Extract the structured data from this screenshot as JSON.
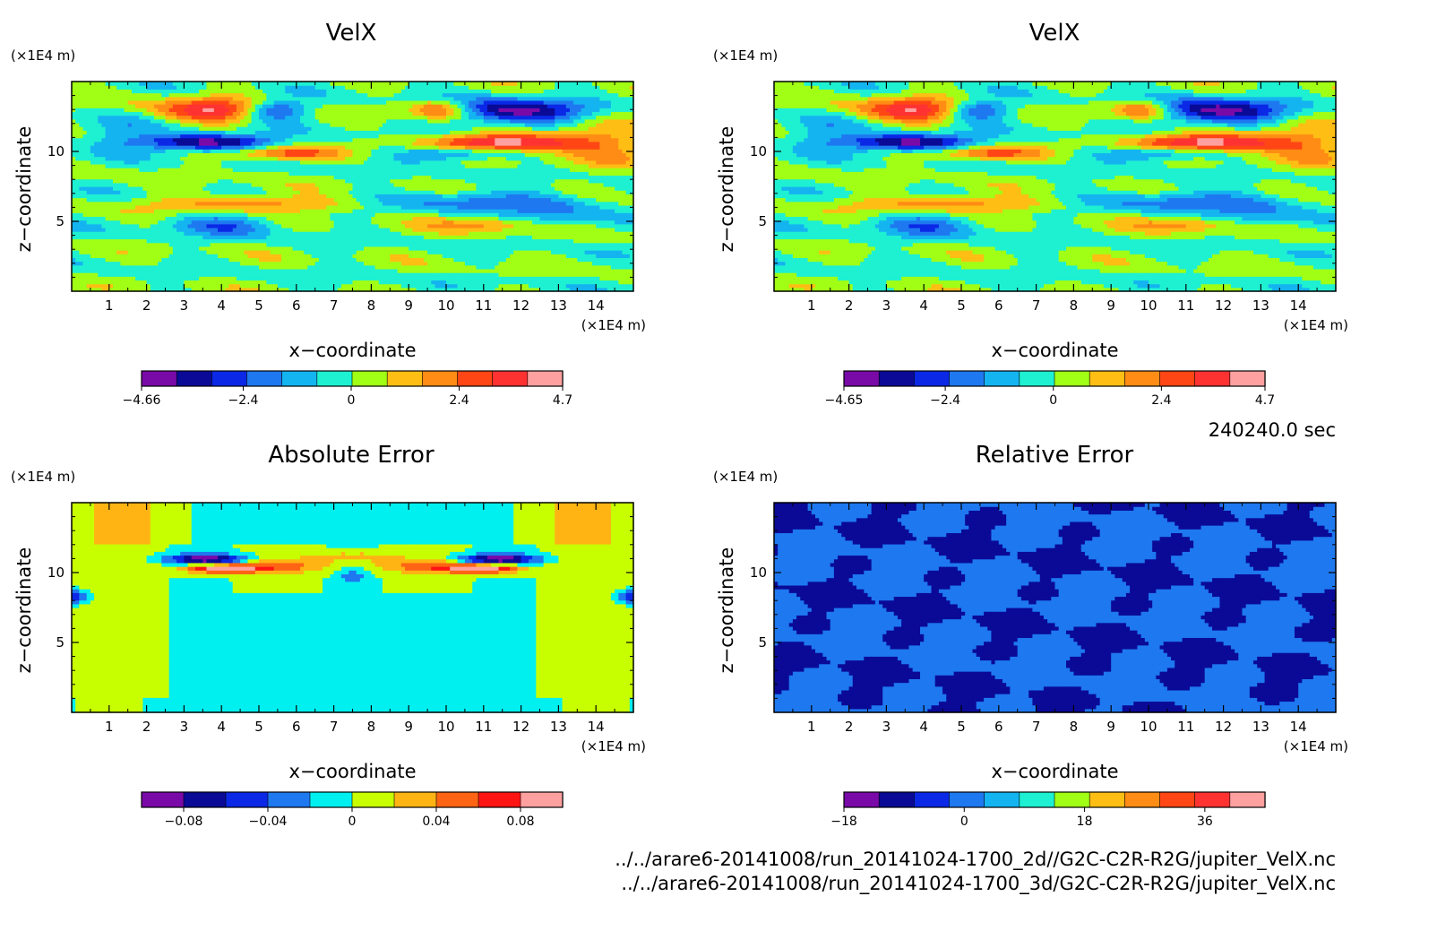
{
  "time_label": "240240.0 sec",
  "file_paths": [
    "../../arare6-20141008/run_20141024-1700_2d//G2C-C2R-R2G/jupiter_VelX.nc",
    "../../arare6-20141008/run_20141024-1700_3d/G2C-C2R-R2G/jupiter_VelX.nc"
  ],
  "colors": {
    "palette": [
      "#7a0aa8",
      "#0a0a96",
      "#0a28e6",
      "#1e78f0",
      "#14b4f0",
      "#1ef0d2",
      "#a0ff14",
      "#ffbe14",
      "#ff8c14",
      "#ff4614",
      "#ff3232",
      "#ffa0a0"
    ],
    "abs_palette": [
      "#7a0aa8",
      "#0a0a96",
      "#0a28e6",
      "#1e78f0",
      "#00f0f0",
      "#c8ff00",
      "#ffb414",
      "#ff6414",
      "#ff1414",
      "#ffa0a0"
    ],
    "rel_palette": [
      "#7a0aa8",
      "#0a0a96",
      "#0a28e6",
      "#1e78f0",
      "#14b4f0",
      "#1ef0d2",
      "#a0ff14",
      "#ffbe14",
      "#ff8c14",
      "#ff4614",
      "#ff3232",
      "#ffa0a0"
    ]
  },
  "chart_data": [
    {
      "type": "heatmap",
      "title": "VelX",
      "xlabel": "x−coordinate",
      "ylabel": "z−coordinate",
      "x_unit": "(×1E4 m)",
      "y_unit": "(×1E4 m)",
      "xlim": [
        0,
        15
      ],
      "ylim": [
        0,
        15
      ],
      "x_ticks": [
        1,
        2,
        3,
        4,
        5,
        6,
        7,
        8,
        9,
        10,
        11,
        12,
        13,
        14
      ],
      "y_ticks": [
        5,
        10
      ],
      "colorbar": {
        "min": -4.66,
        "max": 4.7,
        "tick_values": [
          -4.66,
          -2.4,
          0,
          2.4,
          4.7
        ],
        "tick_labels": [
          "−4.66",
          "−2.4",
          "0",
          "2.4",
          "4.7"
        ],
        "levels": 12
      },
      "field": "velx"
    },
    {
      "type": "heatmap",
      "title": "VelX",
      "xlabel": "x−coordinate",
      "ylabel": "z−coordinate",
      "x_unit": "(×1E4 m)",
      "y_unit": "(×1E4 m)",
      "xlim": [
        0,
        15
      ],
      "ylim": [
        0,
        15
      ],
      "x_ticks": [
        1,
        2,
        3,
        4,
        5,
        6,
        7,
        8,
        9,
        10,
        11,
        12,
        13,
        14
      ],
      "y_ticks": [
        5,
        10
      ],
      "colorbar": {
        "min": -4.65,
        "max": 4.7,
        "tick_values": [
          -4.65,
          -2.4,
          0,
          2.4,
          4.7
        ],
        "tick_labels": [
          "−4.65",
          "−2.4",
          "0",
          "2.4",
          "4.7"
        ],
        "levels": 12
      },
      "field": "velx"
    },
    {
      "type": "heatmap",
      "title": "Absolute Error",
      "xlabel": "x−coordinate",
      "ylabel": "z−coordinate",
      "x_unit": "(×1E4 m)",
      "y_unit": "(×1E4 m)",
      "xlim": [
        0,
        15
      ],
      "ylim": [
        0,
        15
      ],
      "x_ticks": [
        1,
        2,
        3,
        4,
        5,
        6,
        7,
        8,
        9,
        10,
        11,
        12,
        13,
        14
      ],
      "y_ticks": [
        5,
        10
      ],
      "colorbar": {
        "min": -0.1,
        "max": 0.1,
        "tick_values": [
          -0.08,
          -0.04,
          0,
          0.04,
          0.08
        ],
        "tick_labels": [
          "−0.08",
          "−0.04",
          "0",
          "0.04",
          "0.08"
        ],
        "levels": 10
      },
      "field": "abs"
    },
    {
      "type": "heatmap",
      "title": "Relative Error",
      "xlabel": "x−coordinate",
      "ylabel": "z−coordinate",
      "x_unit": "(×1E4 m)",
      "y_unit": "(×1E4 m)",
      "xlim": [
        0,
        15
      ],
      "ylim": [
        0,
        15
      ],
      "x_ticks": [
        1,
        2,
        3,
        4,
        5,
        6,
        7,
        8,
        9,
        10,
        11,
        12,
        13,
        14
      ],
      "y_ticks": [
        5,
        10
      ],
      "colorbar": {
        "min": -18,
        "max": 45,
        "tick_values": [
          -18,
          0,
          18,
          36
        ],
        "tick_labels": [
          "−18",
          "0",
          "18",
          "36"
        ],
        "levels": 12
      },
      "field": "rel"
    }
  ]
}
